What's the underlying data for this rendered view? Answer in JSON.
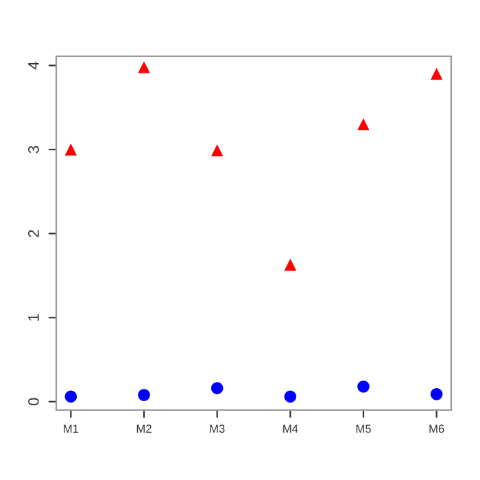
{
  "chart_data": {
    "type": "scatter",
    "categories": [
      "M1",
      "M2",
      "M3",
      "M4",
      "M5",
      "M6"
    ],
    "series": [
      {
        "color": "#ff0000",
        "marker": "triangle",
        "values": [
          3.0,
          3.98,
          2.99,
          1.63,
          3.3,
          3.9
        ]
      },
      {
        "color": "#0000ff",
        "marker": "circle",
        "values": [
          0.06,
          0.08,
          0.16,
          0.06,
          0.18,
          0.09
        ]
      }
    ],
    "ylim": [
      -0.1,
      4.11
    ],
    "yticks": [
      0,
      1,
      2,
      3,
      4
    ],
    "grid": false,
    "legend": false
  }
}
